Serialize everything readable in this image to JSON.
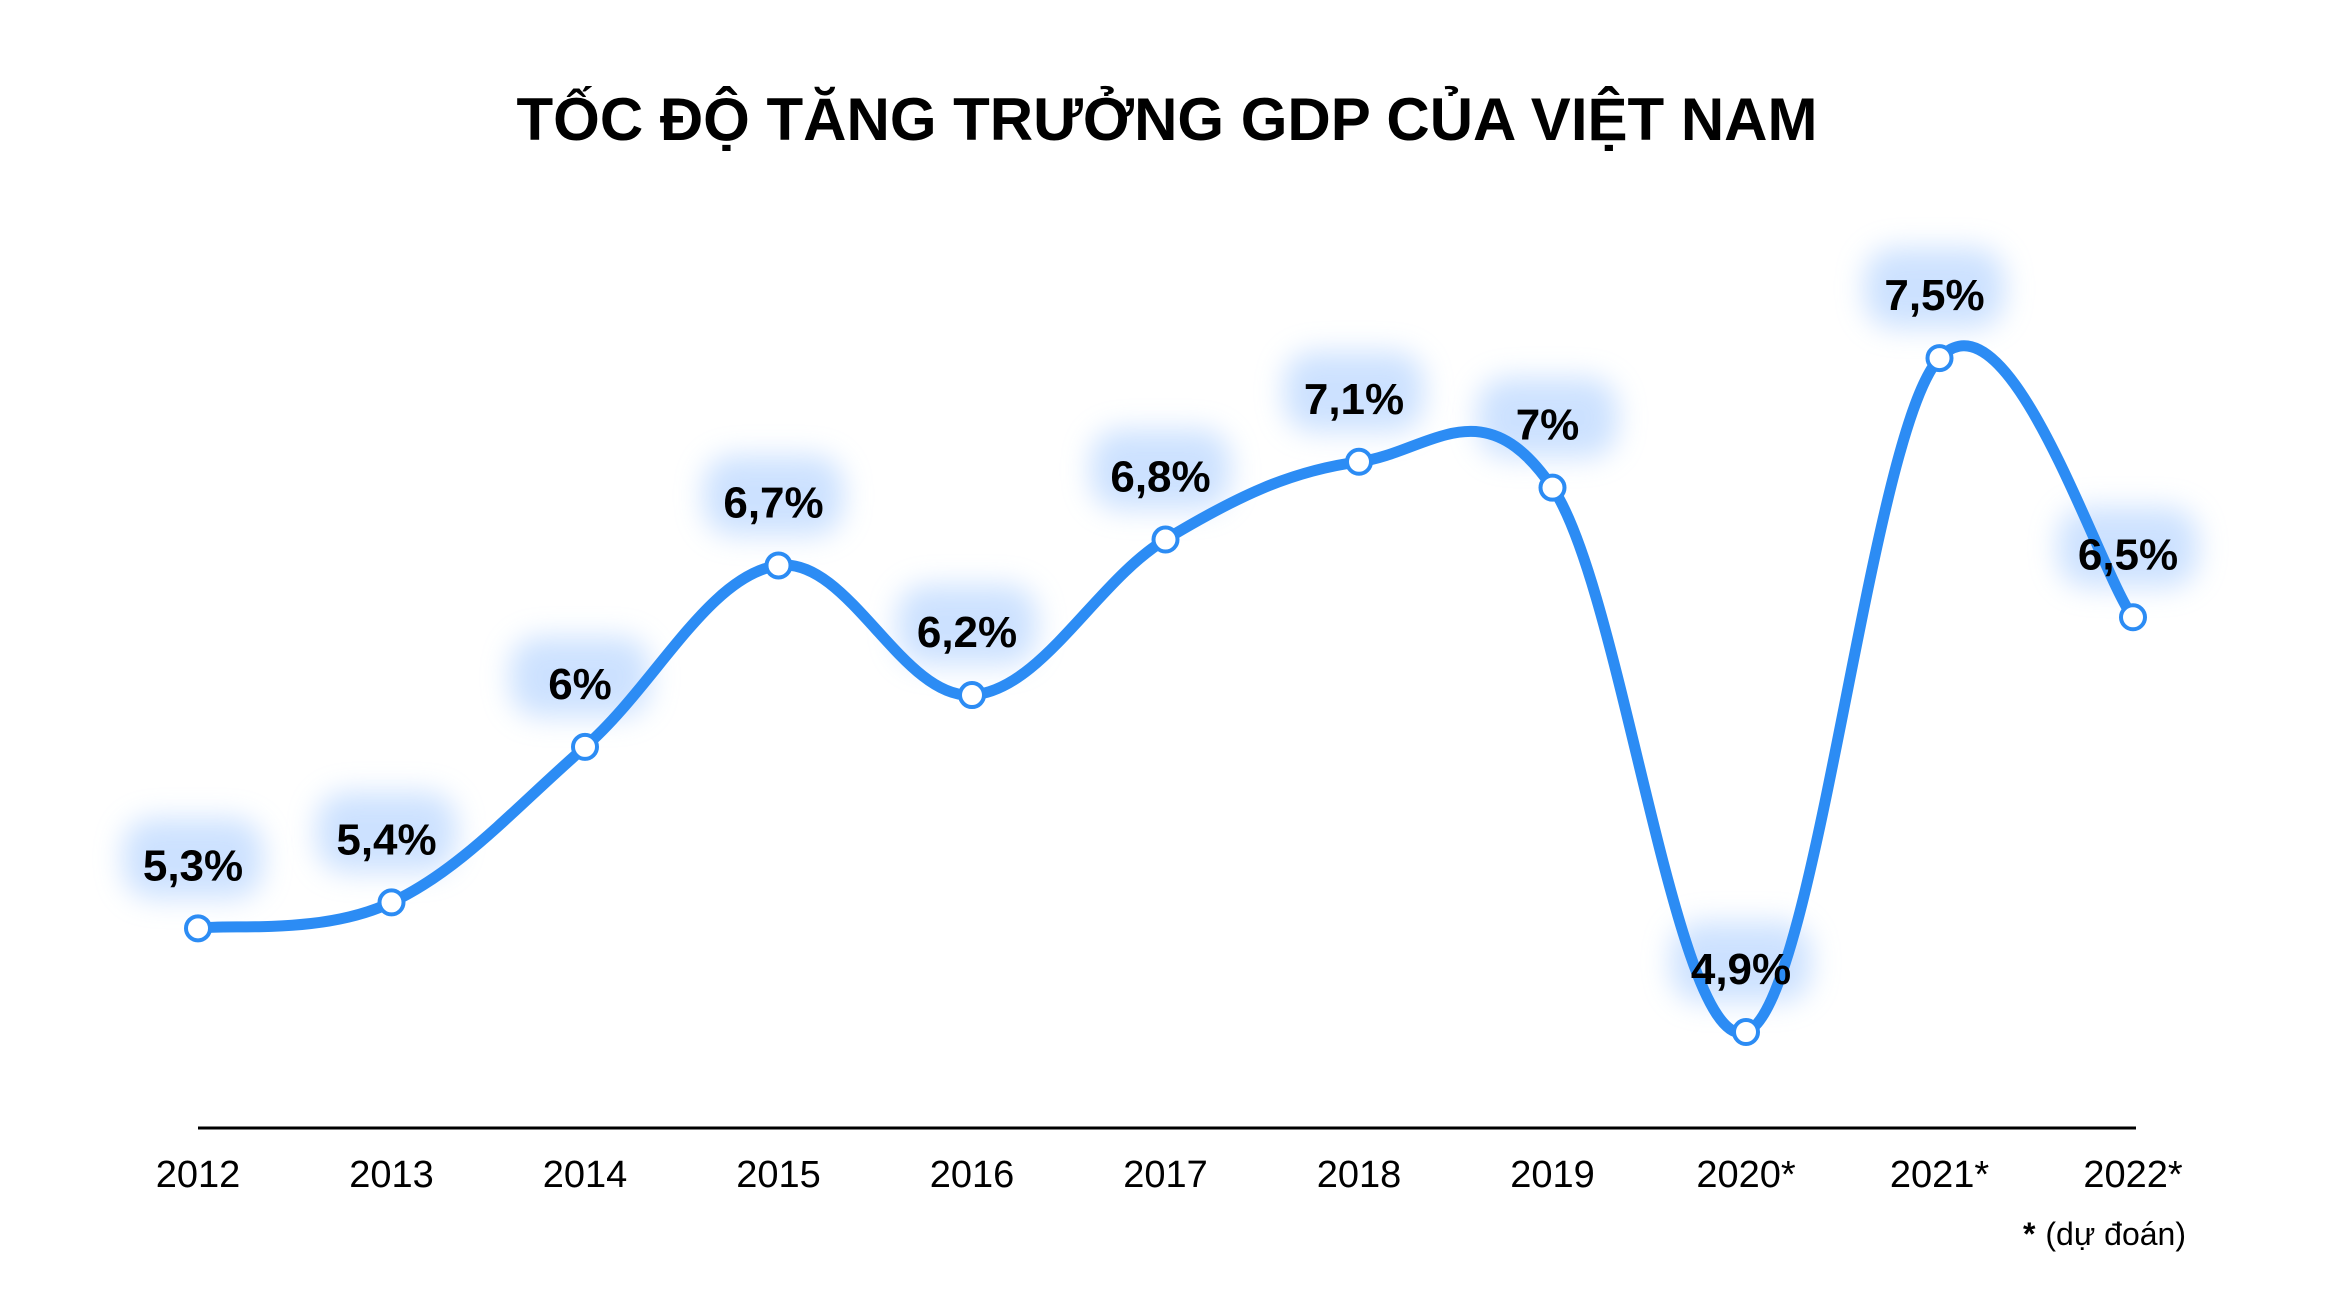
{
  "chart_data": {
    "type": "line",
    "title": "TỐC ĐỘ TĂNG TRƯỞNG GDP CỦA VIỆT NAM",
    "categories": [
      "2012",
      "2013",
      "2014",
      "2015",
      "2016",
      "2017",
      "2018",
      "2019",
      "2020*",
      "2021*",
      "2022*"
    ],
    "values": [
      5.3,
      5.4,
      6.0,
      6.7,
      6.2,
      6.8,
      7.1,
      7.0,
      4.9,
      7.5,
      6.5
    ],
    "data_labels": [
      "5,3%",
      "5,4%",
      "6%",
      "6,7%",
      "6,2%",
      "6,8%",
      "7,1%",
      "7%",
      "4,9%",
      "7,5%",
      "6,5%"
    ],
    "footnote_star": "*",
    "footnote_text": "(dự đoán)",
    "xlabel": "",
    "ylabel": "",
    "grid": false,
    "line_color": "#2C8CF4",
    "marker_fill": "#ffffff"
  }
}
